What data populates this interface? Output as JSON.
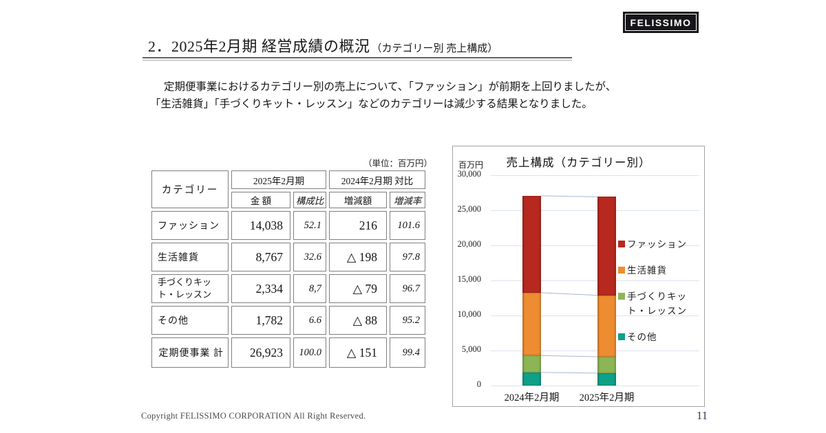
{
  "logo": {
    "text": "FELISSIMO"
  },
  "header": {
    "title_main": "2．2025年2月期 経営成績の概況",
    "title_sub": "（カテゴリー別 売上構成）"
  },
  "intro": {
    "line1": "定期便事業におけるカテゴリー別の売上について、「ファッション」が前期を上回りましたが、",
    "line2": "「生活雑貨」「手づくりキット・レッスン」などのカテゴリーは減少する結果となりました。"
  },
  "table": {
    "unit_note": "（単位：百万円）",
    "col_category": "カテゴリー",
    "group1": "2025年2月期",
    "group2": "2024年2月期 対比",
    "sub_headers": [
      "金 額",
      "構成比",
      "増減額",
      "増減率"
    ],
    "rows": [
      {
        "category": "ファッション",
        "amount": "14,038",
        "share": "52.1",
        "change": "216",
        "rate": "101.6",
        "highlight": true,
        "total": false
      },
      {
        "category": "生活雑貨",
        "amount": "8,767",
        "share": "32.6",
        "change": "△ 198",
        "rate": "97.8",
        "highlight": false,
        "total": false
      },
      {
        "category": "手づくりキット・レッスン",
        "amount": "2,334",
        "share": "8,7",
        "change": "△ 79",
        "rate": "96.7",
        "highlight": false,
        "total": false
      },
      {
        "category": "その他",
        "amount": "1,782",
        "share": "6.6",
        "change": "△ 88",
        "rate": "95.2",
        "highlight": false,
        "total": false
      },
      {
        "category": "定期便事業 計",
        "amount": "26,923",
        "share": "100.0",
        "change": "△ 151",
        "rate": "99.4",
        "highlight": false,
        "total": true
      }
    ]
  },
  "chart_data": {
    "type": "bar",
    "stacked": true,
    "title": "売上構成（カテゴリー別）",
    "unit_label": "百万円",
    "categories": [
      "2024年2月期",
      "2025年2月期"
    ],
    "series": [
      {
        "name": "その他",
        "color": "#0fa089",
        "values": [
          1870,
          1782
        ]
      },
      {
        "name": "手づくりキット・レッスン",
        "color": "#8cb656",
        "values": [
          2413,
          2334
        ]
      },
      {
        "name": "生活雑貨",
        "color": "#ee8c31",
        "values": [
          8965,
          8767
        ]
      },
      {
        "name": "ファッション",
        "color": "#b7291f",
        "values": [
          13822,
          14038
        ]
      }
    ],
    "legend_order": [
      "ファッション",
      "生活雑貨",
      "手づくりキット・レッスン",
      "その他"
    ],
    "ylim": [
      0,
      30000
    ],
    "ytick_step": 5000,
    "ytick_labels": [
      "0",
      "5,000",
      "10,000",
      "15,000",
      "20,000",
      "25,000",
      "30,000"
    ],
    "grid": true,
    "legend_position": "right",
    "series_connector_lines": true
  },
  "footer": {
    "copyright": "Copyright FELISSIMO CORPORATION All Right Reserved.",
    "page_number": "11"
  },
  "colors": {
    "highlight_cell": "#fbe7cd",
    "table_border": "#7f7f7f",
    "chart_border": "#a3a3a3",
    "gridline": "#dbe3ef",
    "connector_line": "#a9b8cf"
  }
}
